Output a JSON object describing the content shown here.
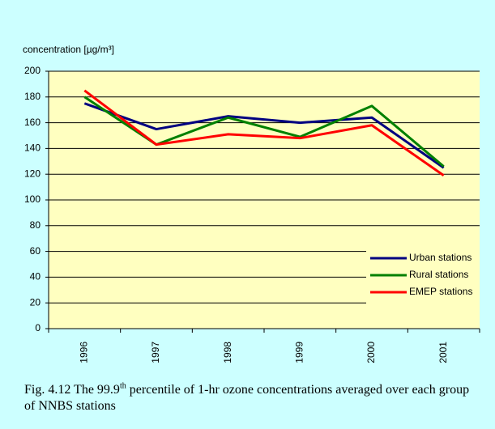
{
  "chart_data": {
    "type": "line",
    "ylabel": "concentration [µg/m³]",
    "caption": {
      "prefix": "Fig.  4.12 The 99.9",
      "sup": "th",
      "rest": " percentile of 1-hr ozone concentrations averaged over each group of NNBS stations"
    },
    "categories": [
      "1996",
      "1997",
      "1998",
      "1999",
      "2000",
      "2001"
    ],
    "series": [
      {
        "name": "Urban stations",
        "color": "#000080",
        "values": [
          175,
          155,
          165,
          160,
          164,
          125
        ]
      },
      {
        "name": "Rural stations",
        "color": "#008000",
        "values": [
          180,
          143,
          164,
          149,
          173,
          126
        ]
      },
      {
        "name": "EMEP stations",
        "color": "#ff0000",
        "values": [
          185,
          143,
          151,
          148,
          158,
          119
        ]
      }
    ],
    "ylim": [
      0,
      200
    ],
    "yticks": [
      0,
      20,
      40,
      60,
      80,
      100,
      120,
      140,
      160,
      180,
      200
    ],
    "grid": true,
    "legend": "lower right"
  }
}
